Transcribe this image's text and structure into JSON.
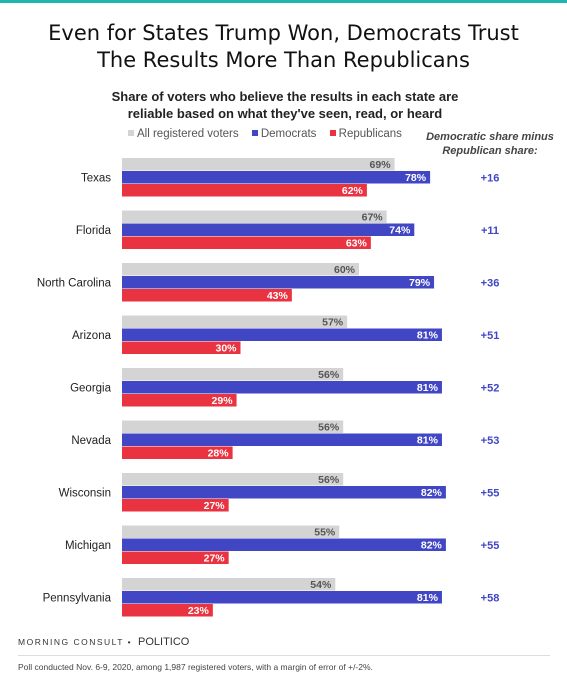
{
  "title_line1": "Even for States Trump Won, Democrats Trust",
  "title_line2": "The Results More Than Republicans",
  "subtitle_line1": "Share of voters who believe the results in each state are",
  "subtitle_line2": "reliable based on what they've seen, read, or heard",
  "side_header_line1": "Democratic share minus",
  "side_header_line2": "Republican share:",
  "footer_brand": "MORNING CONSULT",
  "footer_sep": "•",
  "footer_partner": "POLITICO",
  "footer_note": "Poll conducted Nov. 6-9, 2020, among 1,987 registered voters, with a margin of error of +/-2%.",
  "colors": {
    "all": "#d4d4d4",
    "dem": "#4046c4",
    "rep": "#ea3340",
    "accent": "#1fb5b1"
  },
  "chart_data": {
    "type": "bar",
    "orientation": "horizontal",
    "categories": [
      "Texas",
      "Florida",
      "North Carolina",
      "Arizona",
      "Georgia",
      "Nevada",
      "Wisconsin",
      "Michigan",
      "Pennsylvania"
    ],
    "series": [
      {
        "name": "All registered voters",
        "values": [
          69,
          67,
          60,
          57,
          56,
          56,
          56,
          55,
          54
        ]
      },
      {
        "name": "Democrats",
        "values": [
          78,
          74,
          79,
          81,
          81,
          81,
          82,
          82,
          81
        ]
      },
      {
        "name": "Republicans",
        "values": [
          62,
          63,
          43,
          30,
          29,
          28,
          27,
          27,
          23
        ]
      }
    ],
    "differences": [
      "+16",
      "+11",
      "+36",
      "+51",
      "+52",
      "+53",
      "+55",
      "+55",
      "+58"
    ],
    "value_suffix": "%",
    "xlim": [
      0,
      100
    ],
    "legend_position": "top"
  }
}
